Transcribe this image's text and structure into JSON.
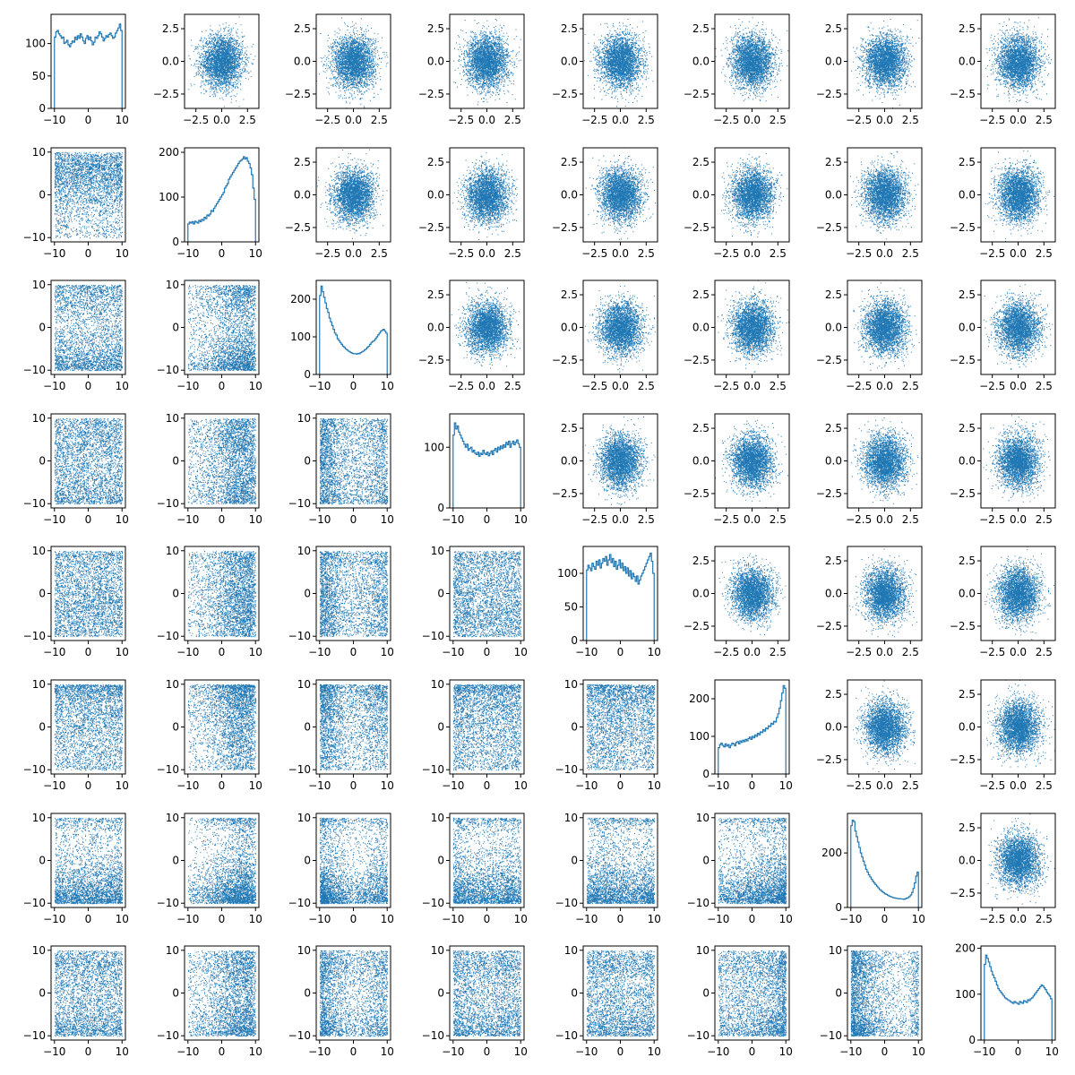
{
  "chart_data": {
    "type": "pairplot",
    "layout": "8x8 corner grid: histograms on the diagonal, scatter of raw samples (range -10..10) below the diagonal, scatter of transformed samples (range about -3.5..3.5) above the diagonal",
    "n_vars": 8,
    "points_per_panel": 10000,
    "series_color": "#1f77b4",
    "raw_axis": {
      "xlim": [
        -11,
        11
      ],
      "ylim": [
        -11,
        11
      ],
      "ticks": [
        -10,
        0,
        10
      ],
      "tick_labels": [
        "−10",
        "0",
        "10"
      ]
    },
    "transformed_axis": {
      "xlim": [
        -3.6,
        3.6
      ],
      "ylim": [
        -3.6,
        3.6
      ],
      "ticks": [
        -2.5,
        0,
        2.5
      ],
      "x_tick_labels": [
        "−2.5",
        "0.0",
        "2.5"
      ],
      "y_tick_labels": [
        "−2.5",
        "0.0",
        "2.5"
      ]
    },
    "histograms": [
      {
        "var": 1,
        "bins": 50,
        "density_shape": "roughly flat, slightly rising toward +10",
        "edges": [
          -10,
          10
        ],
        "counts": [
          110,
          118,
          120,
          115,
          112,
          108,
          110,
          100,
          102,
          105,
          98,
          95,
          100,
          104,
          102,
          110,
          106,
          112,
          108,
          115,
          110,
          104,
          100,
          108,
          112,
          106,
          110,
          104,
          98,
          102,
          110,
          108,
          112,
          118,
          115,
          110,
          104,
          108,
          112,
          110,
          114,
          116,
          112,
          108,
          110,
          116,
          120,
          124,
          130,
          120
        ],
        "ylim": [
          0,
          145
        ],
        "yticks": [
          0,
          50,
          100
        ],
        "ytick_labels": [
          "0",
          "50",
          "100"
        ]
      },
      {
        "var": 2,
        "bins": 50,
        "edges": [
          -10,
          10
        ],
        "counts": [
          40,
          44,
          42,
          45,
          40,
          46,
          44,
          42,
          48,
          45,
          50,
          48,
          55,
          52,
          60,
          58,
          62,
          70,
          68,
          75,
          80,
          85,
          90,
          95,
          100,
          105,
          110,
          120,
          125,
          130,
          140,
          145,
          150,
          155,
          160,
          165,
          170,
          175,
          180,
          182,
          185,
          190,
          185,
          188,
          180,
          175,
          165,
          150,
          120,
          95
        ],
        "ylim": [
          0,
          210
        ],
        "yticks": [
          0,
          100,
          200
        ],
        "ytick_labels": [
          "0",
          "100",
          "200"
        ]
      },
      {
        "var": 3,
        "bins": 50,
        "edges": [
          -10,
          10
        ],
        "counts": [
          210,
          235,
          220,
          205,
          190,
          175,
          165,
          150,
          140,
          130,
          120,
          110,
          105,
          95,
          90,
          85,
          80,
          75,
          72,
          68,
          65,
          62,
          60,
          58,
          56,
          55,
          55,
          54,
          56,
          55,
          58,
          60,
          62,
          65,
          68,
          72,
          75,
          80,
          85,
          88,
          90,
          95,
          100,
          105,
          110,
          115,
          118,
          120,
          115,
          110
        ],
        "ylim": [
          0,
          250
        ],
        "yticks": [
          0,
          100,
          200
        ],
        "ytick_labels": [
          "0",
          "100",
          "200"
        ]
      },
      {
        "var": 4,
        "bins": 50,
        "edges": [
          -10,
          10
        ],
        "counts": [
          120,
          140,
          130,
          135,
          125,
          120,
          115,
          110,
          105,
          100,
          105,
          95,
          98,
          100,
          92,
          95,
          90,
          88,
          92,
          85,
          90,
          88,
          95,
          90,
          88,
          92,
          86,
          90,
          94,
          88,
          95,
          98,
          92,
          100,
          96,
          102,
          98,
          104,
          100,
          108,
          104,
          110,
          100,
          106,
          110,
          104,
          108,
          112,
          106,
          100
        ],
        "ylim": [
          0,
          155
        ],
        "yticks": [
          0,
          100
        ],
        "ytick_labels": [
          "0",
          "100"
        ]
      },
      {
        "var": 5,
        "bins": 50,
        "edges": [
          -10,
          10
        ],
        "counts": [
          105,
          112,
          108,
          104,
          115,
          110,
          106,
          118,
          112,
          120,
          108,
          115,
          122,
          118,
          125,
          112,
          120,
          128,
          116,
          122,
          110,
          118,
          106,
          112,
          120,
          108,
          115,
          104,
          110,
          100,
          108,
          96,
          104,
          92,
          100,
          95,
          88,
          96,
          84,
          90,
          96,
          100,
          105,
          110,
          115,
          120,
          125,
          130,
          118,
          100
        ],
        "ylim": [
          0,
          140
        ],
        "yticks": [
          0,
          50,
          100
        ],
        "ytick_labels": [
          "0",
          "50",
          "100"
        ]
      },
      {
        "var": 6,
        "bins": 50,
        "edges": [
          -10,
          10
        ],
        "counts": [
          70,
          78,
          82,
          76,
          72,
          80,
          74,
          78,
          70,
          76,
          82,
          80,
          75,
          84,
          86,
          80,
          88,
          84,
          90,
          86,
          92,
          88,
          94,
          98,
          92,
          100,
          96,
          104,
          100,
          108,
          104,
          112,
          110,
          118,
          114,
          122,
          120,
          128,
          126,
          135,
          132,
          140,
          138,
          150,
          160,
          175,
          195,
          215,
          235,
          228
        ],
        "ylim": [
          0,
          250
        ],
        "yticks": [
          0,
          100,
          200
        ],
        "ytick_labels": [
          "0",
          "100",
          "200"
        ]
      },
      {
        "var": 7,
        "bins": 50,
        "edges": [
          -10,
          10
        ],
        "counts": [
          300,
          320,
          315,
          280,
          260,
          240,
          220,
          200,
          185,
          170,
          155,
          140,
          130,
          120,
          112,
          104,
          96,
          90,
          84,
          78,
          72,
          66,
          62,
          58,
          54,
          50,
          48,
          45,
          42,
          40,
          38,
          36,
          35,
          34,
          33,
          32,
          32,
          31,
          31,
          30,
          32,
          34,
          36,
          40,
          46,
          55,
          70,
          90,
          115,
          130
        ],
        "ylim": [
          0,
          345
        ],
        "yticks": [
          0,
          200
        ],
        "ytick_labels": [
          "0",
          "200"
        ]
      },
      {
        "var": 8,
        "bins": 50,
        "edges": [
          -10,
          10
        ],
        "counts": [
          165,
          185,
          178,
          170,
          160,
          150,
          142,
          136,
          128,
          120,
          112,
          108,
          104,
          100,
          96,
          92,
          90,
          88,
          86,
          84,
          82,
          80,
          84,
          82,
          80,
          78,
          84,
          82,
          80,
          86,
          84,
          82,
          88,
          86,
          90,
          92,
          96,
          100,
          104,
          108,
          112,
          116,
          120,
          118,
          114,
          110,
          104,
          100,
          96,
          90
        ],
        "ylim": [
          0,
          205
        ],
        "yticks": [
          0,
          100,
          200
        ],
        "ytick_labels": [
          "0",
          "100",
          "200"
        ]
      }
    ]
  }
}
